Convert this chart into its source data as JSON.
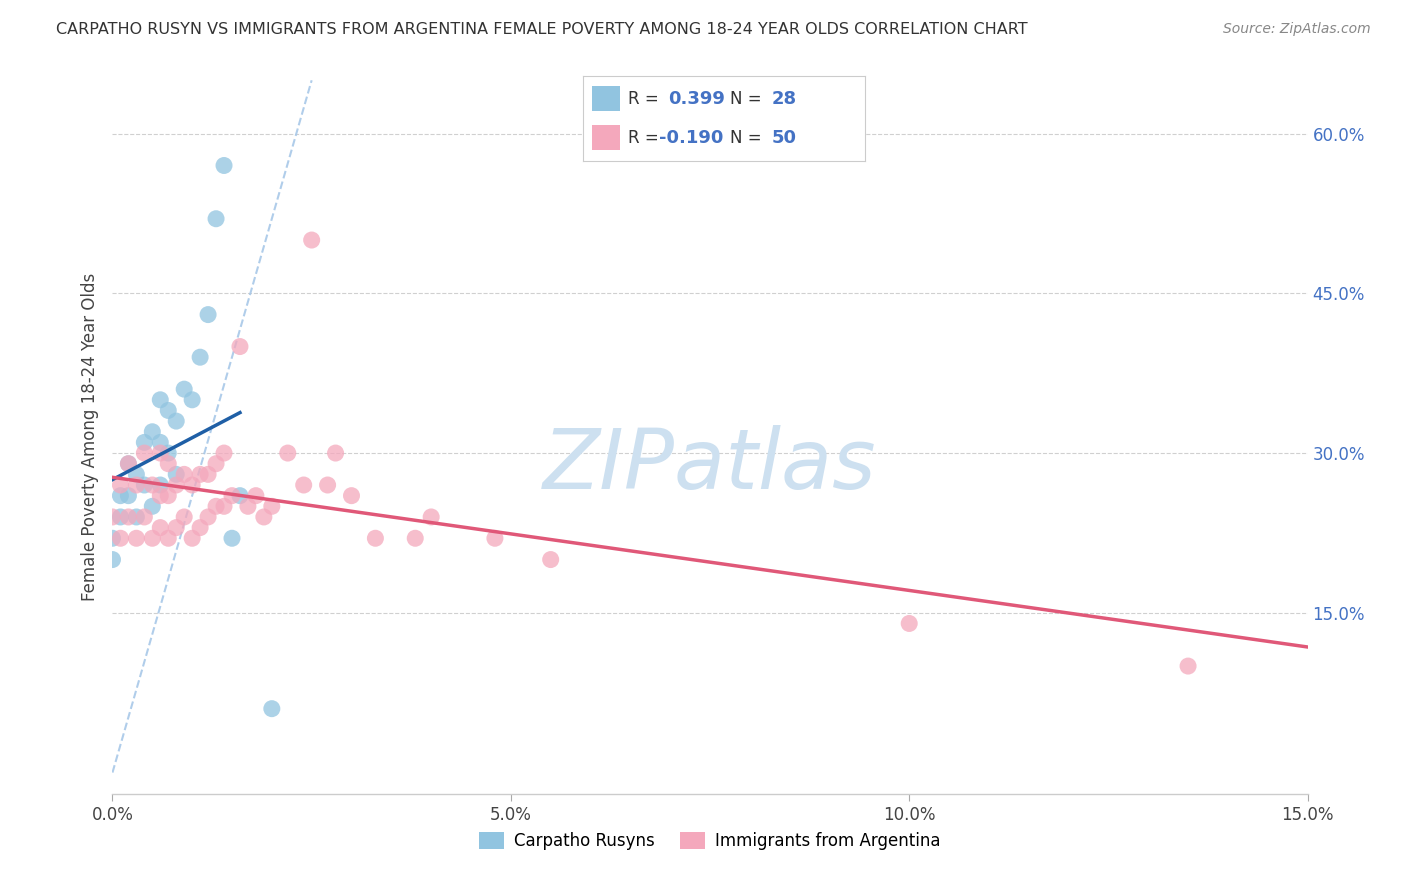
{
  "title": "CARPATHO RUSYN VS IMMIGRANTS FROM ARGENTINA FEMALE POVERTY AMONG 18-24 YEAR OLDS CORRELATION CHART",
  "source": "Source: ZipAtlas.com",
  "ylabel": "Female Poverty Among 18-24 Year Olds",
  "xlim": [
    0.0,
    0.15
  ],
  "ylim": [
    -0.02,
    0.65
  ],
  "xticks": [
    0.0,
    0.05,
    0.1,
    0.15
  ],
  "xticklabels": [
    "0.0%",
    "5.0%",
    "10.0%",
    "15.0%"
  ],
  "yticks_right": [
    0.15,
    0.3,
    0.45,
    0.6
  ],
  "yticklabels_right": [
    "15.0%",
    "30.0%",
    "45.0%",
    "60.0%"
  ],
  "blue_color": "#91c4e0",
  "pink_color": "#f4a8bc",
  "blue_line_color": "#1f5fa6",
  "pink_line_color": "#e05878",
  "diag_color": "#a8c8e8",
  "R_blue": 0.399,
  "N_blue": 28,
  "R_pink": -0.19,
  "N_pink": 50,
  "blue_x": [
    0.0,
    0.0,
    0.001,
    0.001,
    0.002,
    0.002,
    0.003,
    0.003,
    0.004,
    0.004,
    0.005,
    0.005,
    0.006,
    0.006,
    0.006,
    0.007,
    0.007,
    0.008,
    0.008,
    0.009,
    0.01,
    0.011,
    0.012,
    0.013,
    0.014,
    0.015,
    0.016,
    0.02
  ],
  "blue_y": [
    0.2,
    0.22,
    0.24,
    0.26,
    0.26,
    0.29,
    0.24,
    0.28,
    0.27,
    0.31,
    0.25,
    0.32,
    0.27,
    0.31,
    0.35,
    0.3,
    0.34,
    0.28,
    0.33,
    0.36,
    0.35,
    0.39,
    0.43,
    0.52,
    0.57,
    0.22,
    0.26,
    0.06
  ],
  "pink_x": [
    0.0,
    0.001,
    0.001,
    0.002,
    0.002,
    0.003,
    0.003,
    0.004,
    0.004,
    0.005,
    0.005,
    0.006,
    0.006,
    0.006,
    0.007,
    0.007,
    0.007,
    0.008,
    0.008,
    0.009,
    0.009,
    0.01,
    0.01,
    0.011,
    0.011,
    0.012,
    0.012,
    0.013,
    0.013,
    0.014,
    0.014,
    0.015,
    0.016,
    0.017,
    0.018,
    0.019,
    0.02,
    0.022,
    0.024,
    0.025,
    0.027,
    0.028,
    0.03,
    0.033,
    0.038,
    0.04,
    0.048,
    0.055,
    0.1,
    0.135
  ],
  "pink_y": [
    0.24,
    0.22,
    0.27,
    0.24,
    0.29,
    0.22,
    0.27,
    0.24,
    0.3,
    0.22,
    0.27,
    0.23,
    0.26,
    0.3,
    0.22,
    0.26,
    0.29,
    0.23,
    0.27,
    0.24,
    0.28,
    0.22,
    0.27,
    0.23,
    0.28,
    0.24,
    0.28,
    0.25,
    0.29,
    0.25,
    0.3,
    0.26,
    0.4,
    0.25,
    0.26,
    0.24,
    0.25,
    0.3,
    0.27,
    0.5,
    0.27,
    0.3,
    0.26,
    0.22,
    0.22,
    0.24,
    0.22,
    0.2,
    0.14,
    0.1
  ]
}
